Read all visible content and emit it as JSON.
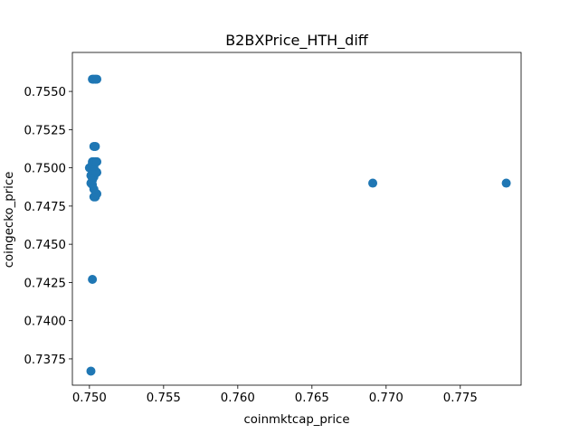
{
  "chart_data": {
    "type": "scatter",
    "title": "B2BXPrice_HTH_diff",
    "xlabel": "coinmktcap_price",
    "ylabel": "coingecko_price",
    "xlim": [
      0.74885,
      0.7791
    ],
    "ylim": [
      0.73578,
      0.75755
    ],
    "grid": false,
    "marker_color": "#1f77b4",
    "x_ticks": [
      0.75,
      0.755,
      0.76,
      0.765,
      0.77,
      0.775
    ],
    "x_tick_labels": [
      "0.750",
      "0.755",
      "0.760",
      "0.765",
      "0.770",
      "0.775"
    ],
    "y_ticks": [
      0.7375,
      0.74,
      0.7425,
      0.745,
      0.7475,
      0.75,
      0.7525,
      0.755
    ],
    "y_tick_labels": [
      "0.7375",
      "0.7400",
      "0.7425",
      "0.7450",
      "0.7475",
      "0.7500",
      "0.7525",
      "0.7550"
    ],
    "points": [
      {
        "x": 0.7501,
        "y": 0.7367
      },
      {
        "x": 0.7502,
        "y": 0.7427
      },
      {
        "x": 0.7503,
        "y": 0.7481
      },
      {
        "x": 0.7504,
        "y": 0.7481
      },
      {
        "x": 0.7505,
        "y": 0.7483
      },
      {
        "x": 0.7503,
        "y": 0.7486
      },
      {
        "x": 0.7502,
        "y": 0.7489
      },
      {
        "x": 0.7501,
        "y": 0.749
      },
      {
        "x": 0.7502,
        "y": 0.7492
      },
      {
        "x": 0.7503,
        "y": 0.7494
      },
      {
        "x": 0.7501,
        "y": 0.7495
      },
      {
        "x": 0.7503,
        "y": 0.7497
      },
      {
        "x": 0.7505,
        "y": 0.7497
      },
      {
        "x": 0.7502,
        "y": 0.7498
      },
      {
        "x": 0.7504,
        "y": 0.7498
      },
      {
        "x": 0.75,
        "y": 0.75
      },
      {
        "x": 0.7501,
        "y": 0.75
      },
      {
        "x": 0.7502,
        "y": 0.7501
      },
      {
        "x": 0.7503,
        "y": 0.7501
      },
      {
        "x": 0.7502,
        "y": 0.7503
      },
      {
        "x": 0.7502,
        "y": 0.7504
      },
      {
        "x": 0.7503,
        "y": 0.7504
      },
      {
        "x": 0.7504,
        "y": 0.7504
      },
      {
        "x": 0.7505,
        "y": 0.7504
      },
      {
        "x": 0.7503,
        "y": 0.7514
      },
      {
        "x": 0.7504,
        "y": 0.7514
      },
      {
        "x": 0.7502,
        "y": 0.7558
      },
      {
        "x": 0.7503,
        "y": 0.7558
      },
      {
        "x": 0.7504,
        "y": 0.7558
      },
      {
        "x": 0.7505,
        "y": 0.7558
      },
      {
        "x": 0.7691,
        "y": 0.749
      },
      {
        "x": 0.7781,
        "y": 0.749
      }
    ]
  }
}
